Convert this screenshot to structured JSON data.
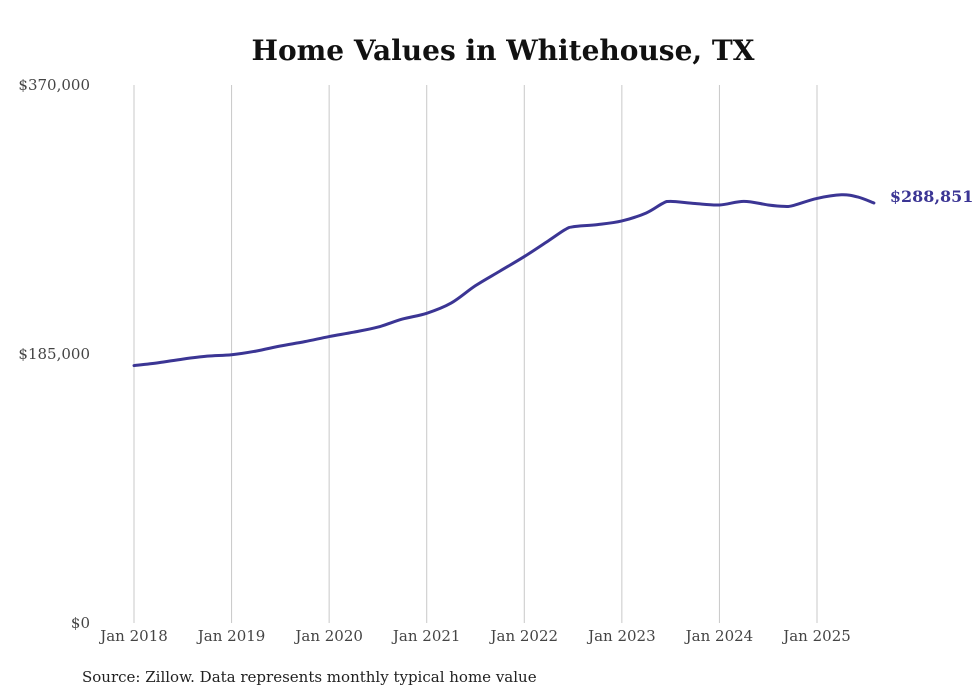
{
  "chart_data": {
    "type": "line",
    "title": "Home Values in Whitehouse, TX",
    "xlabel": "",
    "ylabel": "",
    "ylim": [
      0,
      370000
    ],
    "y_ticks": [
      "$0",
      "$185,000",
      "$370,000"
    ],
    "y_tick_values": [
      0,
      185000,
      370000
    ],
    "x_ticks": [
      "Jan 2018",
      "Jan 2019",
      "Jan 2020",
      "Jan 2021",
      "Jan 2022",
      "Jan 2023",
      "Jan 2024",
      "Jan 2025"
    ],
    "x_tick_dates": [
      "2018-01",
      "2019-01",
      "2020-01",
      "2021-01",
      "2022-01",
      "2023-01",
      "2024-01",
      "2025-01"
    ],
    "grid": "vertical",
    "legend": "none",
    "end_label": "$288,851",
    "series": [
      {
        "color": "#3b3594",
        "points": [
          [
            "2018-01",
            177000
          ],
          [
            "2018-04",
            179000
          ],
          [
            "2018-07",
            181500
          ],
          [
            "2018-10",
            183500
          ],
          [
            "2019-01",
            184500
          ],
          [
            "2019-04",
            187000
          ],
          [
            "2019-07",
            190500
          ],
          [
            "2019-10",
            193500
          ],
          [
            "2020-01",
            197000
          ],
          [
            "2020-04",
            200000
          ],
          [
            "2020-07",
            203500
          ],
          [
            "2020-10",
            209000
          ],
          [
            "2021-01",
            213000
          ],
          [
            "2021-04",
            220000
          ],
          [
            "2021-07",
            232000
          ],
          [
            "2021-10",
            242000
          ],
          [
            "2022-01",
            252000
          ],
          [
            "2022-04",
            263000
          ],
          [
            "2022-06",
            270500
          ],
          [
            "2022-07",
            272500
          ],
          [
            "2022-10",
            274000
          ],
          [
            "2023-01",
            276500
          ],
          [
            "2023-04",
            282000
          ],
          [
            "2023-06",
            288500
          ],
          [
            "2023-07",
            290000
          ],
          [
            "2023-10",
            288500
          ],
          [
            "2024-01",
            287500
          ],
          [
            "2024-04",
            290000
          ],
          [
            "2024-07",
            287500
          ],
          [
            "2024-09",
            286500
          ],
          [
            "2024-10",
            287000
          ],
          [
            "2025-01",
            292000
          ],
          [
            "2025-04",
            294500
          ],
          [
            "2025-06",
            293000
          ],
          [
            "2025-08",
            288851
          ]
        ]
      }
    ]
  },
  "footer": {
    "source": "Source: Zillow. Data represents monthly typical home value"
  },
  "colors": {
    "series": "#3b3594",
    "grid": "#c8c8c8"
  }
}
